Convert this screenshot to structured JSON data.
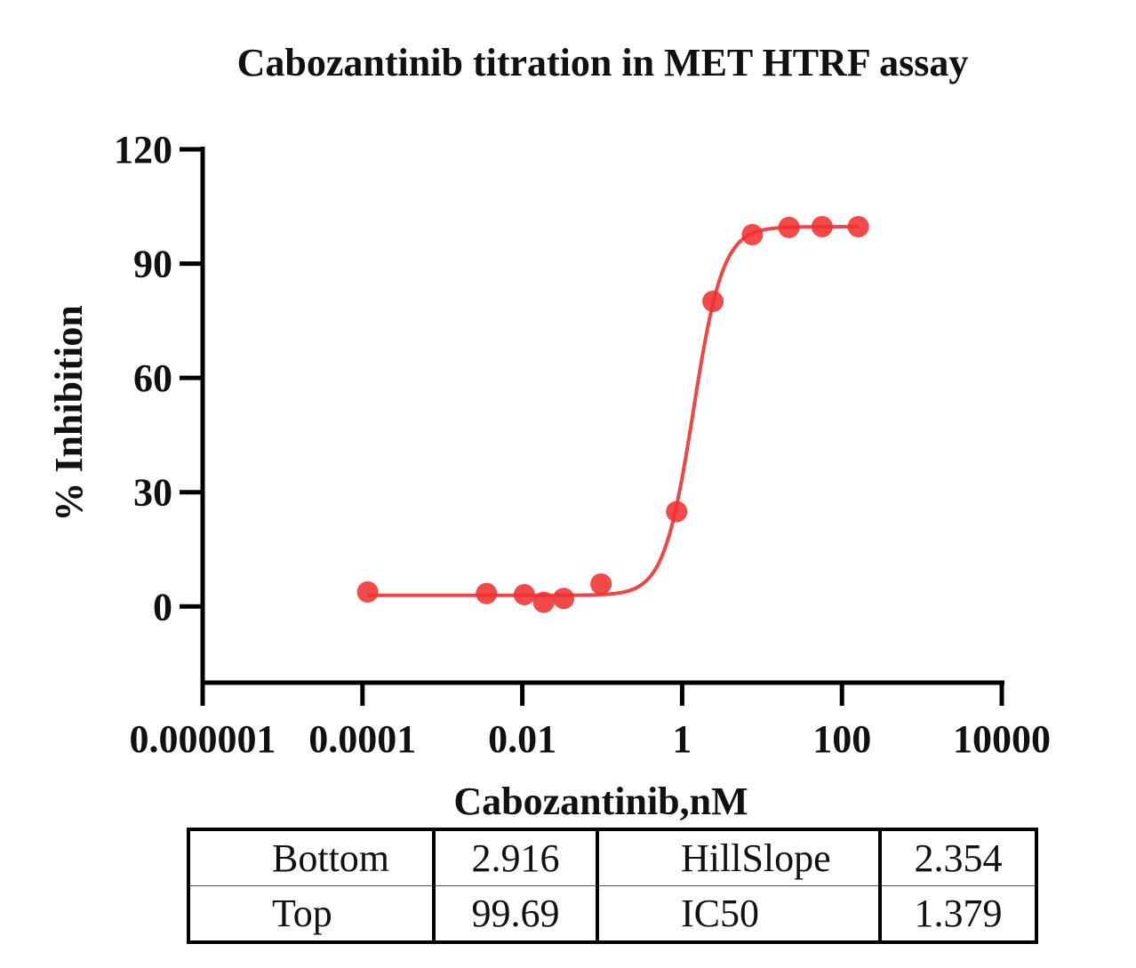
{
  "chart_data": {
    "type": "scatter",
    "title": "Cabozantinib titration in MET HTRF assay",
    "xlabel": "Cabozantinib,nM",
    "ylabel": "% Inhibition",
    "x_scale": "log10",
    "xlim": [
      1e-06,
      10000
    ],
    "ylim": [
      -20,
      120
    ],
    "x_ticks": [
      1e-06,
      0.0001,
      0.01,
      1,
      100,
      10000
    ],
    "x_tick_labels": [
      "0.000001",
      "0.0001",
      "0.01",
      "1",
      "100",
      "10000"
    ],
    "y_ticks": [
      0,
      30,
      60,
      90,
      120
    ],
    "y_tick_labels": [
      "0",
      "30",
      "60",
      "90",
      "120"
    ],
    "color": "#f03030",
    "series": [
      {
        "x": [
          0.000116,
          0.00356,
          0.0106,
          0.0185,
          0.0329,
          0.0966,
          0.853,
          2.43,
          7.56,
          21.7,
          56.4,
          160
        ],
        "y": [
          3.8,
          3.4,
          3.1,
          1.1,
          2.1,
          5.9,
          24.9,
          80.1,
          97.6,
          99.5,
          99.7,
          99.7
        ]
      }
    ],
    "fit": {
      "model": "four-parameter logistic",
      "bottom": 2.916,
      "top": 99.69,
      "hillslope": 2.354,
      "ic50": 1.379,
      "x_range": [
        0.000116,
        160
      ]
    }
  },
  "params_table": {
    "rows": [
      [
        "Bottom",
        "2.916",
        "HillSlope",
        "2.354"
      ],
      [
        "Top",
        "99.69",
        "IC50",
        "1.379"
      ]
    ]
  }
}
